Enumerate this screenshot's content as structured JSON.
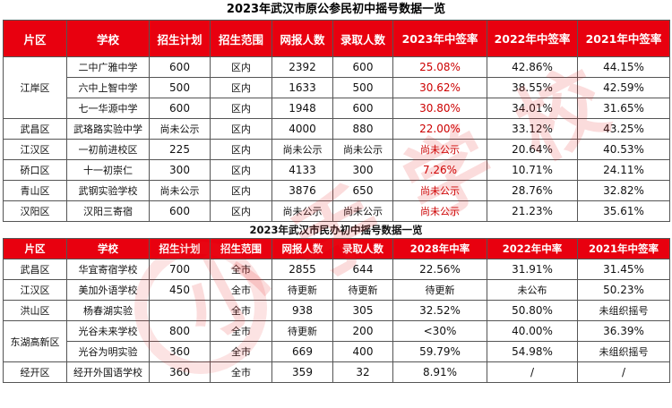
{
  "table1": {
    "title": "2023年武汉市原公参民初中摇号数据一览",
    "headers": [
      "片区",
      "学校",
      "招生计划",
      "招生范围",
      "网报人数",
      "录取人数",
      "2023年中签率",
      "2022年中签率",
      "2021年中签率"
    ],
    "rows": [
      {
        "district": "江岸区",
        "school": "二中广雅中学",
        "plan": "600",
        "scope": "区内",
        "applicants": "2392",
        "admitted": "600",
        "r2023": "25.08%",
        "r2022": "42.86%",
        "r2021": "44.15%"
      },
      {
        "district": "",
        "school": "六中上智中学",
        "plan": "500",
        "scope": "区内",
        "applicants": "1633",
        "admitted": "500",
        "r2023": "30.62%",
        "r2022": "38.55%",
        "r2021": "42.59%"
      },
      {
        "district": "",
        "school": "七一华源中学",
        "plan": "600",
        "scope": "区内",
        "applicants": "1948",
        "admitted": "600",
        "r2023": "30.80%",
        "r2022": "34.01%",
        "r2021": "31.65%"
      },
      {
        "district": "武昌区",
        "school": "武珞路实验中学",
        "plan": "尚未公示",
        "scope": "区内",
        "applicants": "4000",
        "admitted": "880",
        "r2023": "22.00%",
        "r2022": "33.12%",
        "r2021": "43.25%"
      },
      {
        "district": "江汉区",
        "school": "一初前进校区",
        "plan": "225",
        "scope": "区内",
        "applicants": "尚未公示",
        "admitted": "尚未公示",
        "r2023": "尚未公示",
        "r2022": "20.64%",
        "r2021": "40.53%"
      },
      {
        "district": "硚口区",
        "school": "十一初崇仁",
        "plan": "300",
        "scope": "区内",
        "applicants": "4133",
        "admitted": "300",
        "r2023": "7.26%",
        "r2022": "10.71%",
        "r2021": "24.11%"
      },
      {
        "district": "青山区",
        "school": "武钢实验学校",
        "plan": "尚未公示",
        "scope": "区内",
        "applicants": "3876",
        "admitted": "650",
        "r2023": "尚未公示",
        "r2022": "28.76%",
        "r2021": "32.82%"
      },
      {
        "district": "汉阳区",
        "school": "汉阳三寄宿",
        "plan": "600",
        "scope": "区内",
        "applicants": "尚未公示",
        "admitted": "尚未公示",
        "r2023": "尚未公示",
        "r2022": "21.23%",
        "r2021": "35.61%"
      }
    ]
  },
  "table2": {
    "title": "2023年武汉市民办初中摇号数据一览",
    "headers": [
      "片区",
      "学校",
      "招生计划",
      "招生范围",
      "网报人数",
      "录取人数",
      "2028年中率",
      "2022年中率",
      "2021年中签率"
    ],
    "rows": [
      {
        "district": "武昌区",
        "school": "华宜寄宿学校",
        "plan": "700",
        "scope": "全市",
        "applicants": "2855",
        "admitted": "644",
        "r2023": "22.56%",
        "r2022": "31.91%",
        "r2021": "31.45%"
      },
      {
        "district": "江汉区",
        "school": "美加外语学校",
        "plan": "450",
        "scope": "全市",
        "applicants": "待更新",
        "admitted": "待更新",
        "r2023": "待更新",
        "r2022": "未公布",
        "r2021": "50.23%"
      },
      {
        "district": "洪山区",
        "school": "杨春湖实验",
        "plan": "",
        "scope": "全市",
        "applicants": "938",
        "admitted": "305",
        "r2023": "32.52%",
        "r2022": "50.80%",
        "r2021": "未组织摇号"
      },
      {
        "district": "东湖高新区",
        "school": "光谷未来学校",
        "plan": "800",
        "scope": "全市",
        "applicants": "待更新",
        "admitted": "200",
        "r2023": "<30%",
        "r2022": "40.00%",
        "r2021": "36.39%"
      },
      {
        "district": "",
        "school": "光谷为明实验",
        "plan": "360",
        "scope": "全市",
        "applicants": "669",
        "admitted": "400",
        "r2023": "59.79%",
        "r2022": "54.98%",
        "r2021": "未组织摇号"
      },
      {
        "district": "经开区",
        "school": "经开外国语学校",
        "plan": "360",
        "scope": "全市",
        "applicants": "359",
        "admitted": "32",
        "r2023": "8.91%",
        "r2022": "/",
        "r2021": "/"
      }
    ]
  },
  "watermark": {
    "text": "小 手 学 校"
  },
  "colors": {
    "header_bg": "#e8000f",
    "header_text": "#ffffff",
    "highlight_text": "#cc0000"
  }
}
